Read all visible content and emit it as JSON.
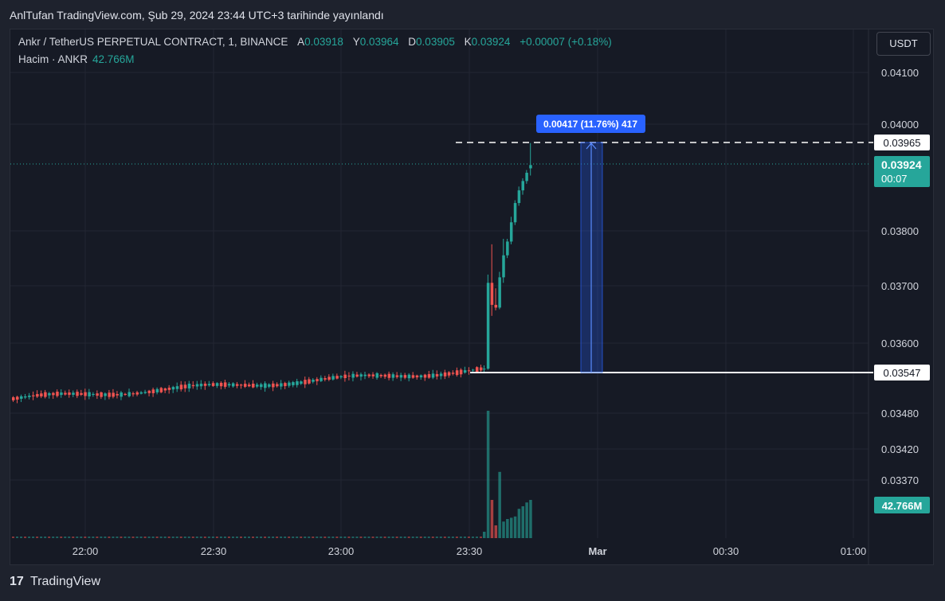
{
  "header": {
    "published": "AnlTufan TradingView.com, Şub 29, 2024 23:44 UTC+3 tarihinde yayınlandı"
  },
  "legend": {
    "symbol": "Ankr / TetherUS PERPETUAL CONTRACT, 1, BINANCE",
    "o_label": "A",
    "o_value": "0.03918",
    "h_label": "Y",
    "h_value": "0.03964",
    "l_label": "D",
    "l_value": "0.03905",
    "c_label": "K",
    "c_value": "0.03924",
    "change": "+0.00007 (+0.18%)",
    "volume_label": "Hacim · ANKR",
    "volume_value": "42.766M"
  },
  "currency_button": "USDT",
  "footer": {
    "logo": "17",
    "brand": "TradingView"
  },
  "chart_data": {
    "type": "candlestick",
    "colors": {
      "up": "#26a69a",
      "down": "#ef5350",
      "background": "#161a25",
      "grid": "#232632",
      "measure": "#2962ff"
    },
    "price_ticks": [
      "0.04100",
      "0.04000",
      "0.03800",
      "0.03700",
      "0.03600",
      "0.03480",
      "0.03420",
      "0.03370"
    ],
    "time_ticks": [
      "22:00",
      "22:30",
      "23:00",
      "23:30",
      "Mar",
      "00:30",
      "01:00"
    ],
    "measure_label": "0.00417 (11.76%) 417",
    "high_marker": "0.03965",
    "low_marker": "0.03547",
    "last_price": "0.03924",
    "countdown": "00:07",
    "volume_badge": "42.766M",
    "price_range": {
      "low": 0.03547,
      "high": 0.03965
    },
    "spike": [
      {
        "o": 0.03553,
        "h": 0.0356,
        "l": 0.03548,
        "c": 0.03554
      },
      {
        "o": 0.03554,
        "h": 0.03725,
        "l": 0.03552,
        "c": 0.0371
      },
      {
        "o": 0.0371,
        "h": 0.0378,
        "l": 0.0365,
        "c": 0.0367
      },
      {
        "o": 0.0367,
        "h": 0.037,
        "l": 0.0366,
        "c": 0.03665
      },
      {
        "o": 0.03665,
        "h": 0.0373,
        "l": 0.03662,
        "c": 0.0372
      },
      {
        "o": 0.0372,
        "h": 0.0379,
        "l": 0.0371,
        "c": 0.0376
      },
      {
        "o": 0.0376,
        "h": 0.0379,
        "l": 0.03755,
        "c": 0.03785
      },
      {
        "o": 0.03785,
        "h": 0.0383,
        "l": 0.0378,
        "c": 0.0382
      },
      {
        "o": 0.0382,
        "h": 0.0386,
        "l": 0.03815,
        "c": 0.03855
      },
      {
        "o": 0.03855,
        "h": 0.03885,
        "l": 0.0385,
        "c": 0.03878
      },
      {
        "o": 0.03878,
        "h": 0.039,
        "l": 0.0387,
        "c": 0.03895
      },
      {
        "o": 0.03895,
        "h": 0.03915,
        "l": 0.0389,
        "c": 0.0391
      },
      {
        "o": 0.03918,
        "h": 0.03964,
        "l": 0.03905,
        "c": 0.03924
      }
    ],
    "spike_volume": [
      0.05,
      1.0,
      0.3,
      0.1,
      0.52,
      0.13,
      0.15,
      0.16,
      0.17,
      0.23,
      0.25,
      0.28,
      0.3
    ]
  }
}
